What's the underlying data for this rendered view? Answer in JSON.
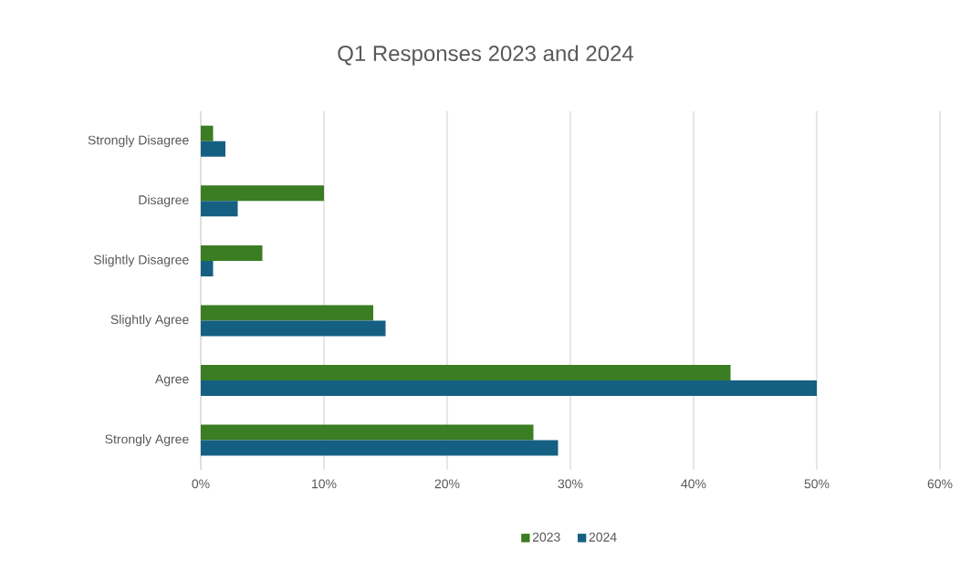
{
  "chart_data": {
    "type": "bar",
    "orientation": "horizontal",
    "title": "Q1 Responses 2023 and 2024",
    "categories": [
      "Strongly Disagree",
      "Disagree",
      "Slightly Disagree",
      "Slightly Agree",
      "Agree",
      "Strongly Agree"
    ],
    "series": [
      {
        "name": "2023",
        "color": "#3a7d22",
        "values": [
          1,
          10,
          5,
          14,
          43,
          27
        ]
      },
      {
        "name": "2024",
        "color": "#156082",
        "values": [
          2,
          3,
          1,
          15,
          50,
          29
        ]
      }
    ],
    "xlim": [
      0,
      60
    ],
    "xticks": [
      {
        "value": 0,
        "label": "0%"
      },
      {
        "value": 10,
        "label": "10%"
      },
      {
        "value": 20,
        "label": "20%"
      },
      {
        "value": 30,
        "label": "30%"
      },
      {
        "value": 40,
        "label": "40%"
      },
      {
        "value": 50,
        "label": "50%"
      },
      {
        "value": 60,
        "label": "60%"
      }
    ],
    "grid": "x",
    "legend": "bottom"
  }
}
